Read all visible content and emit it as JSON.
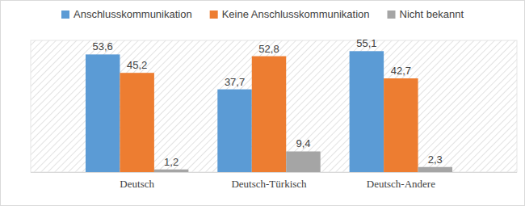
{
  "chart_data": {
    "type": "bar",
    "categories": [
      "Deutsch",
      "Deutsch-Türkisch",
      "Deutsch-Andere"
    ],
    "series": [
      {
        "name": "Anschlusskommunikation",
        "color": "#5b9bd5",
        "values": [
          53.6,
          37.7,
          55.1
        ],
        "value_labels": [
          "53,6",
          "37,7",
          "55,1"
        ]
      },
      {
        "name": "Keine Anschlusskommunikation",
        "color": "#ed7d31",
        "values": [
          45.2,
          52.8,
          42.7
        ],
        "value_labels": [
          "45,2",
          "52,8",
          "42,7"
        ]
      },
      {
        "name": "Nicht bekannt",
        "color": "#a5a5a5",
        "values": [
          1.2,
          9.4,
          2.3
        ],
        "value_labels": [
          "1,2",
          "9,4",
          "2,3"
        ]
      }
    ],
    "ylim": [
      0,
      60
    ],
    "data_labels": true,
    "legend": "top",
    "tick_labels": "x"
  }
}
